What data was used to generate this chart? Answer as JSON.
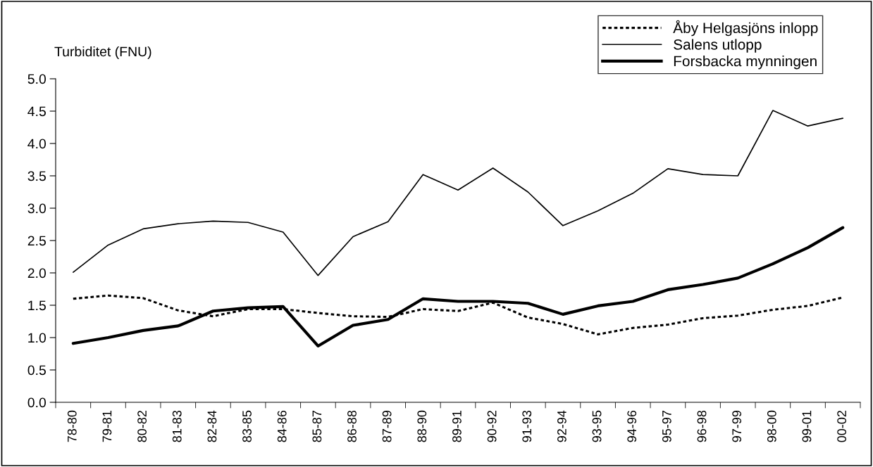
{
  "chart_data": {
    "type": "line",
    "ylabel": "Turbiditet (FNU)",
    "categories": [
      "78-80",
      "79-81",
      "80-82",
      "81-83",
      "82-84",
      "83-85",
      "84-86",
      "85-87",
      "86-88",
      "87-89",
      "88-90",
      "89-91",
      "90-92",
      "91-93",
      "92-94",
      "93-95",
      "94-96",
      "95-97",
      "96-98",
      "97-99",
      "98-00",
      "99-01",
      "00-02"
    ],
    "series": [
      {
        "name": "Åby Helgasjöns inlopp",
        "color": "#000000",
        "line_style": "dotted",
        "values": [
          1.6,
          1.65,
          1.61,
          1.42,
          1.33,
          1.44,
          1.44,
          1.38,
          1.33,
          1.32,
          1.44,
          1.41,
          1.54,
          1.31,
          1.21,
          1.05,
          1.15,
          1.2,
          1.3,
          1.34,
          1.43,
          1.49,
          1.62
        ]
      },
      {
        "name": "Salens utlopp",
        "color": "#000000",
        "line_style": "solid",
        "values": [
          2.01,
          2.43,
          2.68,
          2.76,
          2.8,
          2.78,
          2.63,
          1.96,
          2.56,
          2.79,
          3.52,
          3.28,
          3.62,
          3.25,
          2.73,
          2.96,
          3.23,
          3.61,
          3.52,
          3.5,
          4.51,
          4.27,
          4.39
        ]
      },
      {
        "name": "Forsbacka mynningen",
        "color": "#000000",
        "line_style": "solid",
        "values": [
          0.91,
          1.0,
          1.11,
          1.18,
          1.41,
          1.46,
          1.48,
          0.87,
          1.19,
          1.28,
          1.6,
          1.56,
          1.56,
          1.53,
          1.36,
          1.49,
          1.56,
          1.74,
          1.82,
          1.92,
          2.14,
          2.39,
          2.7
        ]
      }
    ],
    "ylim": [
      0,
      5
    ],
    "yticks": [
      {
        "value": 0,
        "label": "0.0"
      },
      {
        "value": 0.5,
        "label": "0.5"
      },
      {
        "value": 1,
        "label": "1.0"
      },
      {
        "value": 1.5,
        "label": "1.5"
      },
      {
        "value": 2,
        "label": "2.0"
      },
      {
        "value": 2.5,
        "label": "2.5"
      },
      {
        "value": 3,
        "label": "3.0"
      },
      {
        "value": 3.5,
        "label": "3.5"
      },
      {
        "value": 4,
        "label": "4.0"
      },
      {
        "value": 4.5,
        "label": "4.5"
      },
      {
        "value": 5,
        "label": "5.0"
      }
    ],
    "grid": false,
    "legend": "top right",
    "marker": "none"
  }
}
